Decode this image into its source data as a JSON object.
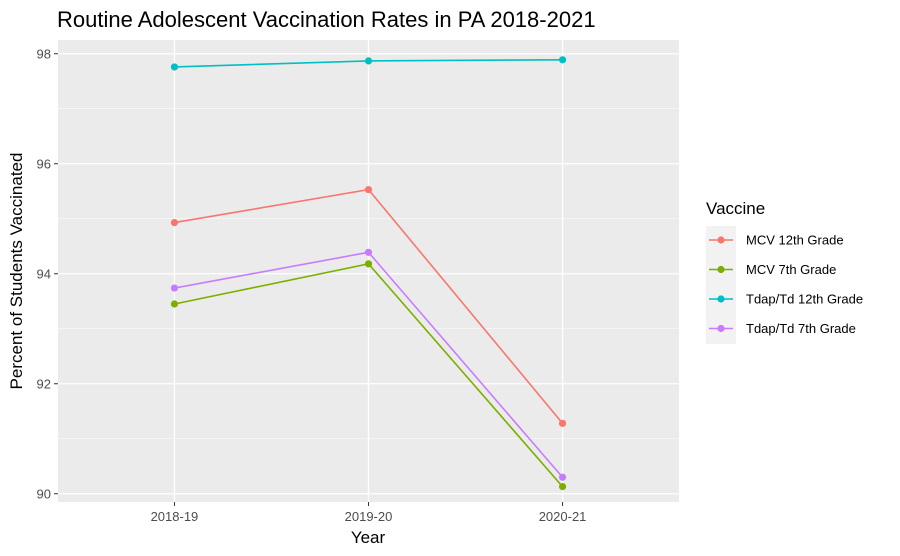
{
  "chart_data": {
    "type": "line",
    "title": "Routine Adolescent Vaccination Rates in PA 2018-2021",
    "xlabel": "Year",
    "ylabel": "Percent of Students Vaccinated",
    "categories": [
      "2018-19",
      "2019-20",
      "2020-21"
    ],
    "ylim": [
      89.85,
      98.25
    ],
    "yticks": [
      90,
      92,
      94,
      96,
      98
    ],
    "grid": true,
    "legend": {
      "title": "Vaccine",
      "placement": "right"
    },
    "series": [
      {
        "name": "MCV 12th Grade",
        "color": "#F8766D",
        "values": [
          94.93,
          95.53,
          91.28
        ]
      },
      {
        "name": "MCV 7th Grade",
        "color": "#7CAE00",
        "values": [
          93.45,
          94.18,
          90.13
        ]
      },
      {
        "name": "Tdap/Td 12th Grade",
        "color": "#00BFC4",
        "values": [
          97.76,
          97.87,
          97.89
        ]
      },
      {
        "name": "Tdap/Td 7th Grade",
        "color": "#C77CFF",
        "values": [
          93.74,
          94.39,
          90.3
        ]
      }
    ]
  }
}
